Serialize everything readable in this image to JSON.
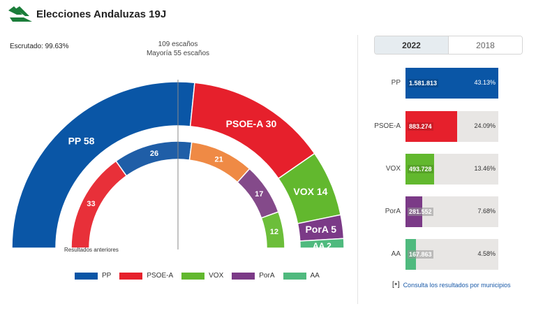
{
  "header": {
    "title": "Elecciones Andaluzas 19J",
    "logo": "green-stripes-logo"
  },
  "scrutiny": "Escrutado: 99.63%",
  "seats": {
    "total": "109 escaños",
    "majority": "Mayoría 55 escaños"
  },
  "previous_label": "Resultados anteriores",
  "colors": {
    "PP": "#0a56a6",
    "PSOE-A": "#e6202c",
    "VOX": "#62b82e",
    "PorA": "#7b3a87",
    "AA": "#4fba7e",
    "PP_prev": "#1f5ea7",
    "PSOE_prev": "#e83039",
    "CS_prev": "#ef8a45",
    "AA_prev": "#844a8a",
    "VOX_prev": "#6cbe3a"
  },
  "chart_data": {
    "type": "hemicycle",
    "current": [
      {
        "party": "PP",
        "seats": 58,
        "label": "PP 58"
      },
      {
        "party": "PSOE-A",
        "seats": 30,
        "label": "PSOE-A 30"
      },
      {
        "party": "VOX",
        "seats": 14,
        "label": "VOX 14"
      },
      {
        "party": "PorA",
        "seats": 5,
        "label": "PorA 5"
      },
      {
        "party": "AA",
        "seats": 2,
        "label": "AA 2"
      }
    ],
    "previous": [
      {
        "seats": 33,
        "label": "33"
      },
      {
        "seats": 26,
        "label": "26"
      },
      {
        "seats": 21,
        "label": "21"
      },
      {
        "seats": 17,
        "label": "17"
      },
      {
        "seats": 12,
        "label": "12"
      }
    ]
  },
  "legend": [
    {
      "party": "PP",
      "label": "PP"
    },
    {
      "party": "PSOE-A",
      "label": "PSOE-A"
    },
    {
      "party": "VOX",
      "label": "VOX"
    },
    {
      "party": "PorA",
      "label": "PorA"
    },
    {
      "party": "AA",
      "label": "AA"
    }
  ],
  "year_tabs": [
    {
      "label": "2022",
      "active": true
    },
    {
      "label": "2018",
      "active": false
    }
  ],
  "votes": [
    {
      "party": "PP",
      "votes": "1.581.813",
      "pct": "43.13%",
      "share": 1.0
    },
    {
      "party": "PSOE-A",
      "votes": "883.274",
      "pct": "24.09%",
      "share": 0.56
    },
    {
      "party": "VOX",
      "votes": "493.728",
      "pct": "13.46%",
      "share": 0.31
    },
    {
      "party": "PorA",
      "votes": "281.552",
      "pct": "7.68%",
      "share": 0.18
    },
    {
      "party": "AA",
      "votes": "167.863",
      "pct": "4.58%",
      "share": 0.11
    }
  ],
  "municipios_link": "Consulta los resultados por municipios",
  "municipios_icon": "map-pin-icon"
}
